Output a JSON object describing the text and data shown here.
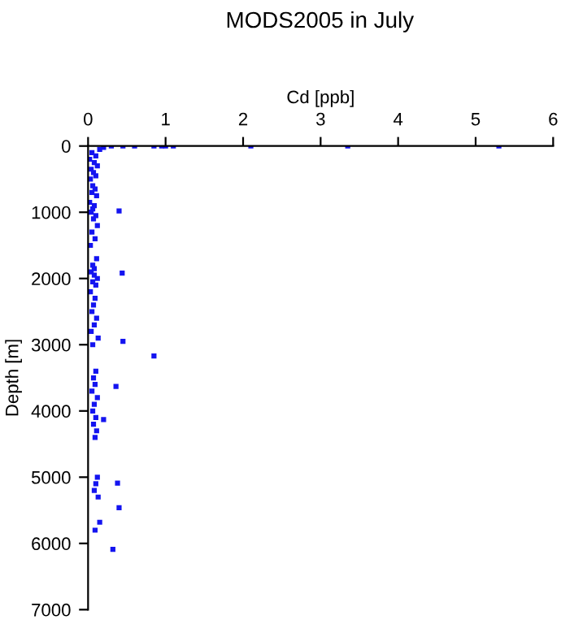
{
  "chart_data": {
    "type": "scatter",
    "title": "MODS2005 in July",
    "xlabel": "Cd [ppb]",
    "ylabel": "Depth [m]",
    "xlim": [
      0,
      6
    ],
    "xticks": [
      0,
      1,
      2,
      3,
      4,
      5,
      6
    ],
    "ylim": [
      7000,
      0
    ],
    "yticks": [
      0,
      1000,
      2000,
      3000,
      4000,
      5000,
      6000,
      7000
    ],
    "grid": false,
    "marker": "square",
    "series": [
      {
        "color": "#1414f0",
        "x": [
          0.3,
          0.45,
          0.6,
          0.85,
          0.95,
          1.0,
          1.1,
          2.1,
          3.35,
          5.3,
          0.2,
          0.15,
          0.05,
          0.1,
          0.02,
          0.08,
          0.12,
          0.04,
          0.07,
          0.1,
          0.03,
          0.06,
          0.09,
          0.05,
          0.11,
          0.02,
          0.08,
          0.06,
          0.04,
          0.1,
          0.07,
          0.12,
          0.05,
          0.09,
          0.03,
          0.11,
          0.06,
          0.08,
          0.4,
          0.44,
          0.45,
          0.85,
          0.36,
          0.2,
          0.38,
          0.4,
          0.32,
          0.15,
          0.04,
          0.08,
          0.12,
          0.06,
          0.1,
          0.03,
          0.09,
          0.07,
          0.05,
          0.11,
          0.08,
          0.04,
          0.13,
          0.06,
          0.1,
          0.07,
          0.09,
          0.05,
          0.12,
          0.08,
          0.06,
          0.1,
          0.07,
          0.11,
          0.09,
          0.12,
          0.1,
          0.08,
          0.13,
          0.09
        ],
        "values": [
          0,
          0,
          0,
          0,
          0,
          0,
          0,
          0,
          0,
          0,
          20,
          50,
          100,
          150,
          200,
          250,
          300,
          350,
          400,
          450,
          500,
          600,
          650,
          700,
          750,
          850,
          900,
          950,
          1000,
          1050,
          1100,
          1200,
          1300,
          1400,
          1500,
          1700,
          1800,
          1850,
          980,
          1920,
          2950,
          3170,
          3630,
          4130,
          5090,
          5460,
          6090,
          5680,
          1900,
          1950,
          2000,
          2050,
          2100,
          2200,
          2300,
          2400,
          2500,
          2600,
          2700,
          2800,
          2900,
          3000,
          3400,
          3500,
          3600,
          3700,
          3800,
          3900,
          4000,
          4100,
          4200,
          4300,
          4400,
          5000,
          5100,
          5200,
          5300,
          5800
        ]
      }
    ]
  }
}
